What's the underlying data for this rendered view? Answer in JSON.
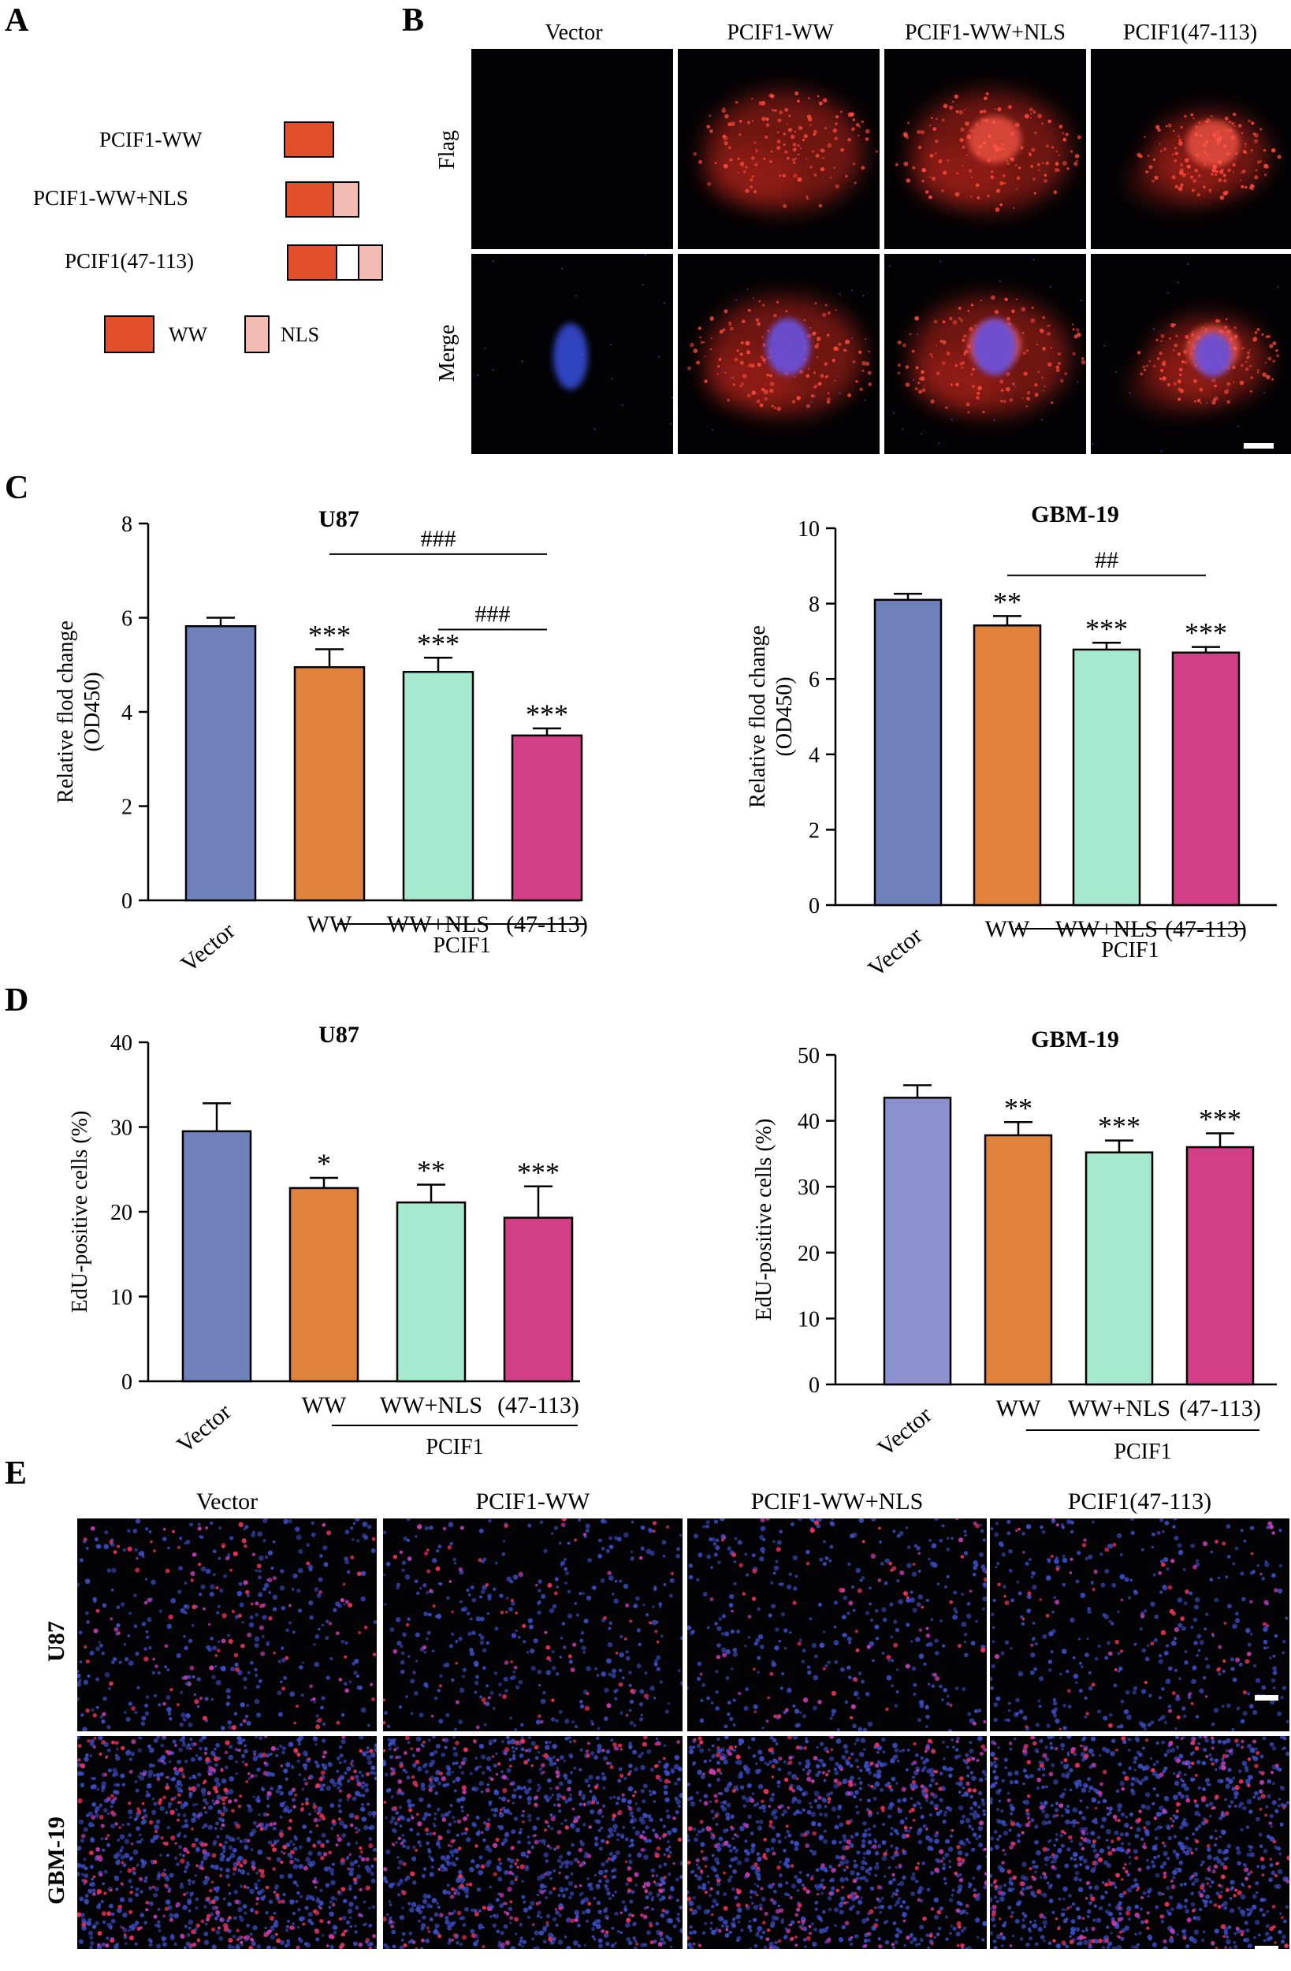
{
  "panels": {
    "A": "A",
    "B": "B",
    "C": "C",
    "D": "D",
    "E": "E"
  },
  "colors": {
    "ww": "#e2502b",
    "nls": "#f2bcb2",
    "vector": "#6f81bb",
    "vector_light": "#8b91cf",
    "ww_bar": "#e0823b",
    "wwnls_bar": "#a5e9cf",
    "p47_bar": "#d33f87",
    "nucleus": "#3346c8",
    "flag": "#c8281e",
    "background": "#030305"
  },
  "panel_a": {
    "constructs": [
      {
        "label": "PCIF1-WW",
        "segments": [
          "ww"
        ]
      },
      {
        "label": "PCIF1-WW+NLS",
        "segments": [
          "ww",
          "nls"
        ]
      },
      {
        "label": "PCIF1(47-113)",
        "segments": [
          "ww",
          "gap",
          "nls"
        ]
      }
    ],
    "legend": [
      {
        "label": "WW",
        "color": "#e2502b"
      },
      {
        "label": "NLS",
        "color": "#f2bcb2"
      }
    ]
  },
  "panel_b": {
    "columns": [
      "Vector",
      "PCIF1-WW",
      "PCIF1-WW+NLS",
      "PCIF1(47-113)"
    ],
    "rows": [
      "Flag",
      "Merge"
    ]
  },
  "panel_e": {
    "columns": [
      "Vector",
      "PCIF1-WW",
      "PCIF1-WW+NLS",
      "PCIF1(47-113)"
    ],
    "rows": [
      "U87",
      "GBM-19"
    ]
  },
  "chart_data": [
    {
      "id": "c_u87",
      "panel": "C",
      "type": "bar",
      "title": "U87",
      "ylabel": [
        "Relative flod change",
        "(OD450)"
      ],
      "ylim": [
        0,
        8
      ],
      "yticks": [
        0,
        2,
        4,
        6,
        8
      ],
      "categories": [
        "Vector",
        "WW",
        "WW+NLS",
        "(47-113)"
      ],
      "values": [
        5.82,
        4.95,
        4.85,
        3.5
      ],
      "errors": [
        0.18,
        0.38,
        0.3,
        0.15
      ],
      "sig": [
        "",
        "***",
        "***",
        "***"
      ],
      "group_label": "PCIF1",
      "brackets": [
        {
          "from": 1,
          "to": 3,
          "label": "###",
          "y": 7.35
        },
        {
          "from": 2,
          "to": 3,
          "label": "###",
          "y": 5.75
        }
      ]
    },
    {
      "id": "c_gbm",
      "panel": "C",
      "type": "bar",
      "title": "GBM-19",
      "ylabel": [
        "Relative flod change",
        "(OD450)"
      ],
      "ylim": [
        0,
        10
      ],
      "yticks": [
        0,
        2,
        4,
        6,
        8,
        10
      ],
      "categories": [
        "Vector",
        "WW",
        "WW+NLS",
        "(47-113)"
      ],
      "values": [
        8.1,
        7.42,
        6.78,
        6.7
      ],
      "errors": [
        0.16,
        0.25,
        0.18,
        0.15
      ],
      "sig": [
        "",
        "**",
        "***",
        "***"
      ],
      "group_label": "PCIF1",
      "brackets": [
        {
          "from": 1,
          "to": 3,
          "label": "##",
          "y": 8.75
        }
      ]
    },
    {
      "id": "d_u87",
      "panel": "D",
      "type": "bar",
      "title": "U87",
      "ylabel": [
        "EdU-positive cells (%)"
      ],
      "ylim": [
        0,
        40
      ],
      "yticks": [
        0,
        10,
        20,
        30,
        40
      ],
      "categories": [
        "Vector",
        "WW",
        "WW+NLS",
        "(47-113)"
      ],
      "values": [
        29.5,
        22.8,
        21.1,
        19.3
      ],
      "errors": [
        3.3,
        1.2,
        2.1,
        3.7
      ],
      "sig": [
        "",
        "*",
        "**",
        "***"
      ],
      "group_label": "PCIF1",
      "brackets": []
    },
    {
      "id": "d_gbm",
      "panel": "D",
      "type": "bar",
      "title": "GBM-19",
      "ylabel": [
        "EdU-positive cells (%)"
      ],
      "ylim": [
        0,
        50
      ],
      "yticks": [
        0,
        10,
        20,
        30,
        40,
        50
      ],
      "categories": [
        "Vector",
        "WW",
        "WW+NLS",
        "(47-113)"
      ],
      "values": [
        43.5,
        37.8,
        35.2,
        36.0
      ],
      "errors": [
        1.9,
        2.0,
        1.8,
        2.1
      ],
      "sig": [
        "",
        "**",
        "***",
        "***"
      ],
      "group_label": "PCIF1",
      "brackets": []
    }
  ]
}
